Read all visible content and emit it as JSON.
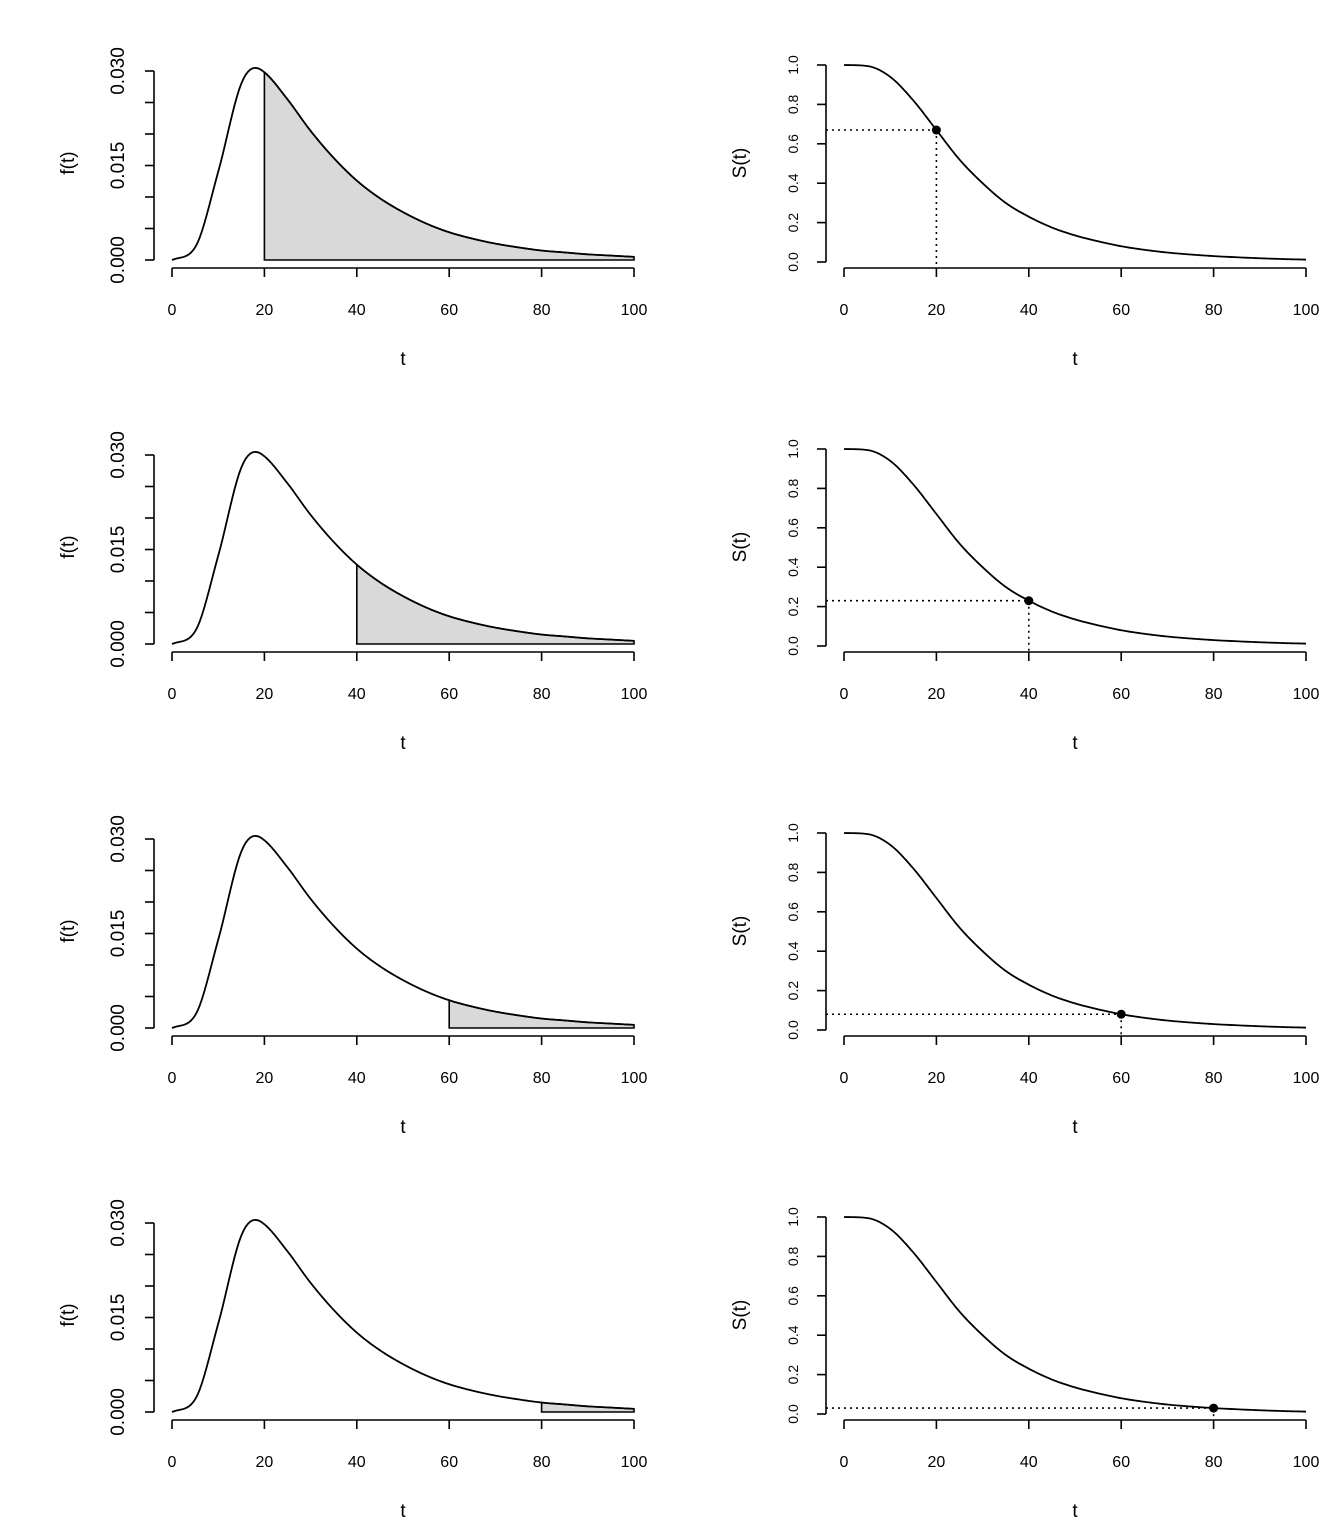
{
  "chart_data": [
    {
      "id": "density-1",
      "type": "area",
      "xlabel": "t",
      "ylabel": "f(t)",
      "xlim": [
        0,
        100
      ],
      "ylim": [
        0,
        0.03
      ],
      "xticks": [
        0,
        20,
        40,
        60,
        80,
        100
      ],
      "yticks": [
        "0.000",
        "0.015",
        "0.030"
      ],
      "shade_from": 20,
      "x": [
        0,
        5,
        10,
        15,
        18,
        20,
        25,
        30,
        35,
        40,
        45,
        50,
        55,
        60,
        65,
        70,
        75,
        80,
        85,
        90,
        95,
        100
      ],
      "y": [
        0,
        0.002,
        0.014,
        0.028,
        0.0305,
        0.0298,
        0.0255,
        0.0205,
        0.0162,
        0.0126,
        0.0098,
        0.0076,
        0.0058,
        0.0044,
        0.0034,
        0.0026,
        0.002,
        0.0015,
        0.0012,
        0.0009,
        0.0007,
        0.0005
      ]
    },
    {
      "id": "survival-1",
      "type": "line",
      "xlabel": "t",
      "ylabel": "S(t)",
      "xlim": [
        0,
        100
      ],
      "ylim": [
        0,
        1
      ],
      "xticks": [
        0,
        20,
        40,
        60,
        80,
        100
      ],
      "yticks": [
        "0.0",
        "0.2",
        "0.4",
        "0.6",
        "0.8",
        "1.0"
      ],
      "marked_point": {
        "t": 20,
        "s": 0.67
      },
      "x": [
        0,
        5,
        10,
        15,
        20,
        25,
        30,
        35,
        40,
        45,
        50,
        55,
        60,
        65,
        70,
        75,
        80,
        85,
        90,
        95,
        100
      ],
      "y": [
        1,
        0.995,
        0.94,
        0.82,
        0.67,
        0.52,
        0.4,
        0.3,
        0.23,
        0.175,
        0.135,
        0.105,
        0.08,
        0.062,
        0.048,
        0.038,
        0.03,
        0.024,
        0.019,
        0.015,
        0.012
      ]
    },
    {
      "id": "density-2",
      "type": "area",
      "xlabel": "t",
      "ylabel": "f(t)",
      "xlim": [
        0,
        100
      ],
      "ylim": [
        0,
        0.03
      ],
      "xticks": [
        0,
        20,
        40,
        60,
        80,
        100
      ],
      "yticks": [
        "0.000",
        "0.015",
        "0.030"
      ],
      "shade_from": 40,
      "x": [
        0,
        5,
        10,
        15,
        18,
        20,
        25,
        30,
        35,
        40,
        45,
        50,
        55,
        60,
        65,
        70,
        75,
        80,
        85,
        90,
        95,
        100
      ],
      "y": [
        0,
        0.002,
        0.014,
        0.028,
        0.0305,
        0.0298,
        0.0255,
        0.0205,
        0.0162,
        0.0126,
        0.0098,
        0.0076,
        0.0058,
        0.0044,
        0.0034,
        0.0026,
        0.002,
        0.0015,
        0.0012,
        0.0009,
        0.0007,
        0.0005
      ]
    },
    {
      "id": "survival-2",
      "type": "line",
      "xlabel": "t",
      "ylabel": "S(t)",
      "xlim": [
        0,
        100
      ],
      "ylim": [
        0,
        1
      ],
      "xticks": [
        0,
        20,
        40,
        60,
        80,
        100
      ],
      "yticks": [
        "0.0",
        "0.2",
        "0.4",
        "0.6",
        "0.8",
        "1.0"
      ],
      "marked_point": {
        "t": 40,
        "s": 0.23
      },
      "x": [
        0,
        5,
        10,
        15,
        20,
        25,
        30,
        35,
        40,
        45,
        50,
        55,
        60,
        65,
        70,
        75,
        80,
        85,
        90,
        95,
        100
      ],
      "y": [
        1,
        0.995,
        0.94,
        0.82,
        0.67,
        0.52,
        0.4,
        0.3,
        0.23,
        0.175,
        0.135,
        0.105,
        0.08,
        0.062,
        0.048,
        0.038,
        0.03,
        0.024,
        0.019,
        0.015,
        0.012
      ]
    },
    {
      "id": "density-3",
      "type": "area",
      "xlabel": "t",
      "ylabel": "f(t)",
      "xlim": [
        0,
        100
      ],
      "ylim": [
        0,
        0.03
      ],
      "xticks": [
        0,
        20,
        40,
        60,
        80,
        100
      ],
      "yticks": [
        "0.000",
        "0.015",
        "0.030"
      ],
      "shade_from": 60,
      "x": [
        0,
        5,
        10,
        15,
        18,
        20,
        25,
        30,
        35,
        40,
        45,
        50,
        55,
        60,
        65,
        70,
        75,
        80,
        85,
        90,
        95,
        100
      ],
      "y": [
        0,
        0.002,
        0.014,
        0.028,
        0.0305,
        0.0298,
        0.0255,
        0.0205,
        0.0162,
        0.0126,
        0.0098,
        0.0076,
        0.0058,
        0.0044,
        0.0034,
        0.0026,
        0.002,
        0.0015,
        0.0012,
        0.0009,
        0.0007,
        0.0005
      ]
    },
    {
      "id": "survival-3",
      "type": "line",
      "xlabel": "t",
      "ylabel": "S(t)",
      "xlim": [
        0,
        100
      ],
      "ylim": [
        0,
        1
      ],
      "xticks": [
        0,
        20,
        40,
        60,
        80,
        100
      ],
      "yticks": [
        "0.0",
        "0.2",
        "0.4",
        "0.6",
        "0.8",
        "1.0"
      ],
      "marked_point": {
        "t": 60,
        "s": 0.08
      },
      "x": [
        0,
        5,
        10,
        15,
        20,
        25,
        30,
        35,
        40,
        45,
        50,
        55,
        60,
        65,
        70,
        75,
        80,
        85,
        90,
        95,
        100
      ],
      "y": [
        1,
        0.995,
        0.94,
        0.82,
        0.67,
        0.52,
        0.4,
        0.3,
        0.23,
        0.175,
        0.135,
        0.105,
        0.08,
        0.062,
        0.048,
        0.038,
        0.03,
        0.024,
        0.019,
        0.015,
        0.012
      ]
    },
    {
      "id": "density-4",
      "type": "area",
      "xlabel": "t",
      "ylabel": "f(t)",
      "xlim": [
        0,
        100
      ],
      "ylim": [
        0,
        0.03
      ],
      "xticks": [
        0,
        20,
        40,
        60,
        80,
        100
      ],
      "yticks": [
        "0.000",
        "0.015",
        "0.030"
      ],
      "shade_from": 80,
      "x": [
        0,
        5,
        10,
        15,
        18,
        20,
        25,
        30,
        35,
        40,
        45,
        50,
        55,
        60,
        65,
        70,
        75,
        80,
        85,
        90,
        95,
        100
      ],
      "y": [
        0,
        0.002,
        0.014,
        0.028,
        0.0305,
        0.0298,
        0.0255,
        0.0205,
        0.0162,
        0.0126,
        0.0098,
        0.0076,
        0.0058,
        0.0044,
        0.0034,
        0.0026,
        0.002,
        0.0015,
        0.0012,
        0.0009,
        0.0007,
        0.0005
      ]
    },
    {
      "id": "survival-4",
      "type": "line",
      "xlabel": "t",
      "ylabel": "S(t)",
      "xlim": [
        0,
        100
      ],
      "ylim": [
        0,
        1
      ],
      "xticks": [
        0,
        20,
        40,
        60,
        80,
        100
      ],
      "yticks": [
        "0.0",
        "0.2",
        "0.4",
        "0.6",
        "0.8",
        "1.0"
      ],
      "marked_point": {
        "t": 80,
        "s": 0.03
      },
      "x": [
        0,
        5,
        10,
        15,
        20,
        25,
        30,
        35,
        40,
        45,
        50,
        55,
        60,
        65,
        70,
        75,
        80,
        85,
        90,
        95,
        100
      ],
      "y": [
        1,
        0.995,
        0.94,
        0.82,
        0.67,
        0.52,
        0.4,
        0.3,
        0.23,
        0.175,
        0.135,
        0.105,
        0.08,
        0.062,
        0.048,
        0.038,
        0.03,
        0.024,
        0.019,
        0.015,
        0.012
      ]
    }
  ],
  "colors": {
    "shade": "#d9d9d9",
    "line": "#000000"
  }
}
